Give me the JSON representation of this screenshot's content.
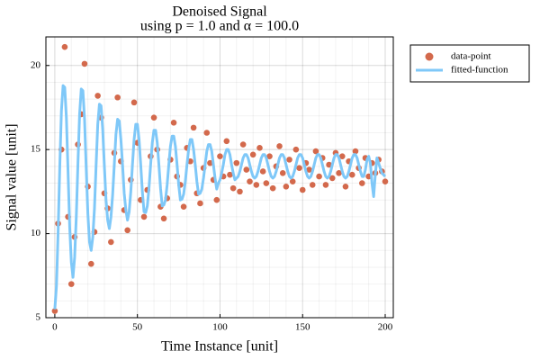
{
  "chart_data": {
    "type": "scatter-line",
    "title": "Denoised Signal",
    "subtitle": "using p = 1.0 and α = 100.0",
    "x_label": "Time Instance [unit]",
    "y_label": "Signal value [unit]",
    "xlim": [
      -5.4,
      204.9
    ],
    "ylim": [
      5,
      21.7
    ],
    "xticks": [
      0,
      50,
      100,
      150,
      200
    ],
    "yticks": [
      5,
      10,
      15,
      20
    ],
    "grid": true,
    "minor_grid": true,
    "legend": "outside-top-right",
    "x": [
      0,
      1,
      2,
      3,
      4,
      5,
      6,
      7,
      8,
      9,
      10,
      11,
      12,
      13,
      14,
      15,
      16,
      17,
      18,
      19,
      20,
      21,
      22,
      23,
      24,
      25,
      26,
      27,
      28,
      29,
      30,
      31,
      32,
      33,
      34,
      35,
      36,
      37,
      38,
      39,
      40,
      41,
      42,
      43,
      44,
      45,
      46,
      47,
      48,
      49,
      50,
      51,
      52,
      53,
      54,
      55,
      56,
      57,
      58,
      59,
      60,
      61,
      62,
      63,
      64,
      65,
      66,
      67,
      68,
      69,
      70,
      71,
      72,
      73,
      74,
      75,
      76,
      77,
      78,
      79,
      80,
      81,
      82,
      83,
      84,
      85,
      86,
      87,
      88,
      89,
      90,
      91,
      92,
      93,
      94,
      95,
      96,
      97,
      98,
      99,
      100,
      101,
      102,
      103,
      104,
      105,
      106,
      107,
      108,
      109,
      110,
      111,
      112,
      113,
      114,
      115,
      116,
      117,
      118,
      119,
      120,
      121,
      122,
      123,
      124,
      125,
      126,
      127,
      128,
      129,
      130,
      131,
      132,
      133,
      134,
      135,
      136,
      137,
      138,
      139,
      140,
      141,
      142,
      143,
      144,
      145,
      146,
      147,
      148,
      149,
      150,
      151,
      152,
      153,
      154,
      155,
      156,
      157,
      158,
      159,
      160,
      161,
      162,
      163,
      164,
      165,
      166,
      167,
      168,
      169,
      170,
      171,
      172,
      173,
      174,
      175,
      176,
      177,
      178,
      179,
      180,
      181,
      182,
      183,
      184,
      185,
      186,
      187,
      188,
      189,
      190,
      191,
      192,
      193,
      194,
      195,
      196,
      197,
      198,
      199,
      200
    ],
    "series": [
      {
        "name": "data-point",
        "kind": "scatter",
        "color": "#d3694c",
        "values": [
          5.4,
          null,
          10.6,
          null,
          15.0,
          null,
          21.1,
          null,
          11.0,
          null,
          7.0,
          null,
          9.8,
          null,
          15.3,
          null,
          17.1,
          null,
          20.1,
          null,
          12.8,
          null,
          8.2,
          null,
          10.1,
          null,
          18.2,
          null,
          16.9,
          null,
          12.4,
          null,
          11.5,
          null,
          9.5,
          null,
          14.8,
          null,
          18.1,
          null,
          14.3,
          null,
          11.4,
          null,
          10.2,
          null,
          13.2,
          null,
          17.8,
          null,
          15.4,
          null,
          12.0,
          null,
          11.0,
          null,
          12.6,
          null,
          14.6,
          null,
          16.9,
          null,
          15.0,
          null,
          11.6,
          null,
          10.9,
          null,
          12.1,
          null,
          14.4,
          null,
          16.6,
          null,
          13.4,
          null,
          12.9,
          null,
          11.6,
          null,
          15.1,
          null,
          14.3,
          null,
          16.3,
          null,
          12.4,
          null,
          11.8,
          null,
          13.9,
          null,
          16.0,
          null,
          14.2,
          null,
          13.2,
          null,
          12.0,
          null,
          14.6,
          null,
          13.4,
          null,
          15.5,
          null,
          13.5,
          null,
          12.7,
          null,
          14.2,
          null,
          12.5,
          null,
          15.3,
          null,
          13.8,
          null,
          13.1,
          null,
          14.7,
          null,
          12.9,
          null,
          15.1,
          null,
          13.7,
          null,
          13.0,
          null,
          14.6,
          null,
          12.7,
          null,
          14.0,
          null,
          15.2,
          null,
          13.6,
          null,
          12.8,
          null,
          14.4,
          null,
          13.1,
          null,
          15.0,
          null,
          13.9,
          null,
          12.6,
          null,
          14.2,
          null,
          13.8,
          null,
          12.9,
          null,
          14.9,
          null,
          13.4,
          null,
          14.5,
          null,
          12.9,
          null,
          14.1,
          null,
          13.3,
          null,
          14.8,
          null,
          13.6,
          null,
          14.6,
          null,
          12.8,
          null,
          14.3,
          null,
          13.5,
          null,
          14.9,
          null,
          13.9,
          null,
          13.0,
          null,
          14.5,
          null,
          13.4,
          null,
          14.2,
          null,
          13.6,
          null,
          14.4,
          null,
          13.7,
          null,
          13.1
        ]
      },
      {
        "name": "fitted-function",
        "kind": "line",
        "color": "#7fc8f8",
        "values": [
          5.5,
          6.9,
          10.1,
          14.0,
          17.3,
          18.8,
          18.7,
          16.9,
          13.7,
          10.4,
          8.3,
          7.4,
          8.6,
          11.0,
          14.2,
          17.1,
          18.6,
          18.5,
          16.8,
          13.9,
          11.2,
          9.5,
          9.0,
          9.8,
          11.5,
          14.1,
          16.5,
          17.7,
          17.6,
          16.2,
          14.0,
          12.0,
          10.8,
          10.3,
          11.0,
          12.3,
          14.1,
          15.9,
          16.8,
          16.7,
          15.6,
          14.1,
          12.4,
          11.4,
          10.8,
          11.3,
          12.5,
          14.1,
          15.6,
          16.5,
          16.5,
          15.6,
          14.1,
          12.5,
          11.3,
          11.25,
          11.65,
          12.7,
          14.1,
          15.4,
          16.15,
          16.15,
          15.4,
          14.1,
          12.7,
          11.65,
          11.7,
          12.0,
          12.9,
          14.1,
          15.2,
          15.8,
          15.8,
          15.2,
          14.1,
          12.9,
          12.0,
          12.05,
          12.35,
          13.1,
          14.1,
          15.0,
          15.6,
          15.6,
          15.0,
          14.1,
          13.1,
          12.35,
          12.4,
          12.65,
          13.3,
          14.1,
          14.9,
          15.3,
          15.3,
          14.9,
          14.1,
          13.3,
          12.65,
          13.0,
          13.2,
          13.6,
          14.1,
          14.7,
          15.0,
          15.0,
          14.7,
          14.1,
          13.6,
          13.2,
          13.3,
          13.4,
          13.7,
          14.1,
          14.5,
          14.7,
          14.7,
          14.5,
          14.1,
          13.7,
          13.4,
          13.3,
          13.4,
          13.7,
          14.1,
          14.5,
          14.7,
          14.7,
          14.5,
          14.1,
          13.7,
          13.4,
          13.3,
          13.4,
          13.7,
          14.1,
          14.5,
          14.7,
          14.7,
          14.5,
          14.1,
          13.7,
          13.4,
          13.3,
          13.4,
          13.7,
          14.1,
          14.5,
          14.7,
          14.7,
          14.5,
          14.1,
          13.7,
          13.4,
          13.3,
          13.4,
          13.7,
          14.1,
          14.5,
          14.7,
          14.7,
          14.5,
          14.1,
          13.7,
          13.4,
          13.3,
          13.4,
          13.7,
          14.1,
          14.5,
          14.7,
          14.7,
          14.5,
          14.1,
          13.7,
          13.4,
          13.3,
          13.4,
          13.7,
          14.1,
          14.5,
          14.7,
          14.7,
          14.5,
          14.1,
          13.7,
          13.4,
          13.4,
          13.8,
          14.4,
          14.6,
          14.2,
          13.0,
          12.2,
          13.5,
          14.5,
          14.2,
          13.9,
          13.6,
          13.5,
          13.4
        ]
      }
    ]
  }
}
